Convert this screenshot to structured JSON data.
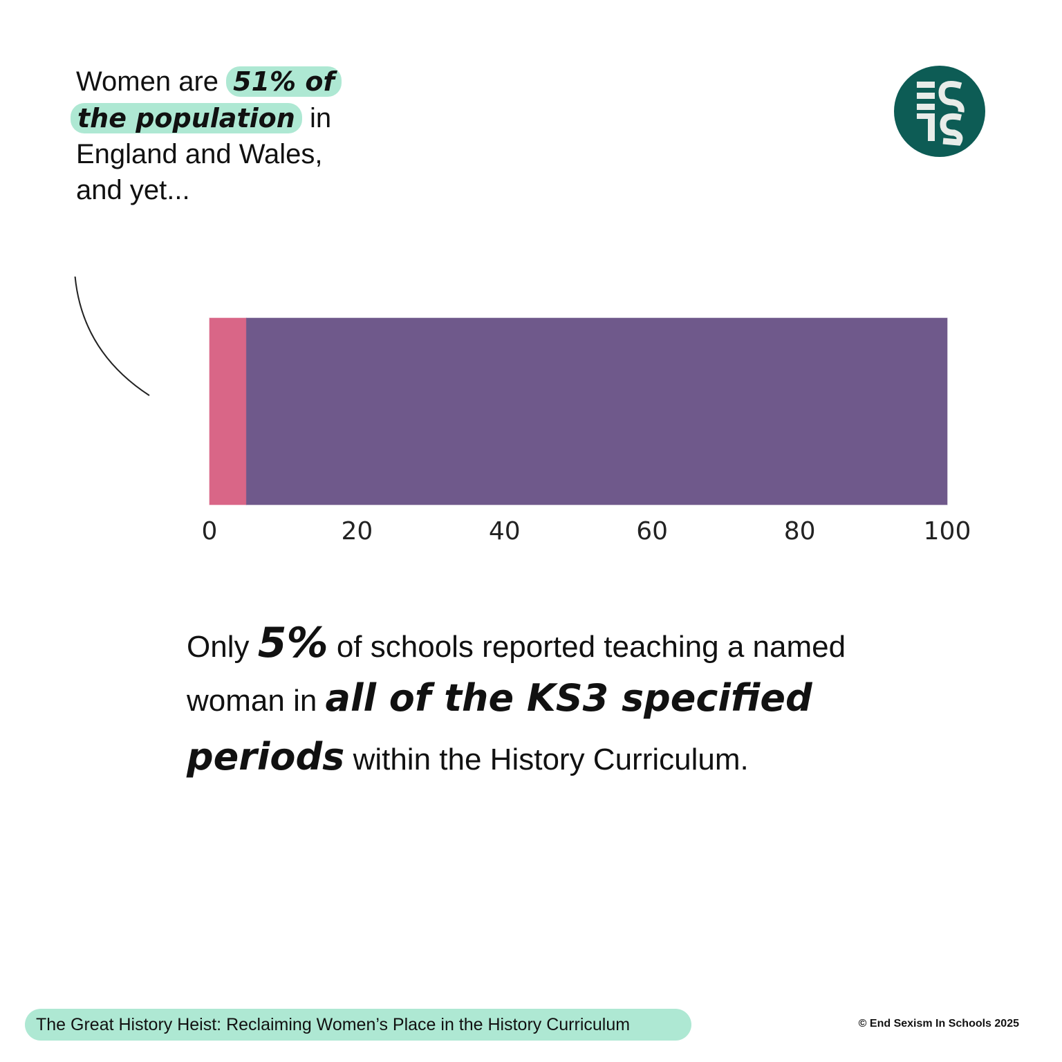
{
  "intro": {
    "text1": "Women are",
    "highlight1": "51% of",
    "highlight2": "the population",
    "text2": "in",
    "text3": "England and Wales,",
    "text4": "and yet..."
  },
  "chart_data": {
    "type": "bar",
    "orientation": "horizontal",
    "stacked": true,
    "series": [
      {
        "color": "#d96687",
        "values": [
          5
        ]
      },
      {
        "color": "#6f598b",
        "values": [
          95
        ]
      }
    ],
    "xlim": [
      0,
      100
    ],
    "xticks": [
      0,
      20,
      40,
      60,
      80,
      100
    ]
  },
  "body": {
    "text1": "Only",
    "stat": "5%",
    "text2": "of schools reported teaching a named",
    "text3": "woman in",
    "emphasis1": "all of the KS3 specified",
    "emphasis2": "periods",
    "text4": "within the History Curriculum."
  },
  "footer": {
    "title": "The Great History Heist: Reclaiming Women’s Place in the History Curriculum",
    "copyright": "© End Sexism In Schools 2025"
  }
}
